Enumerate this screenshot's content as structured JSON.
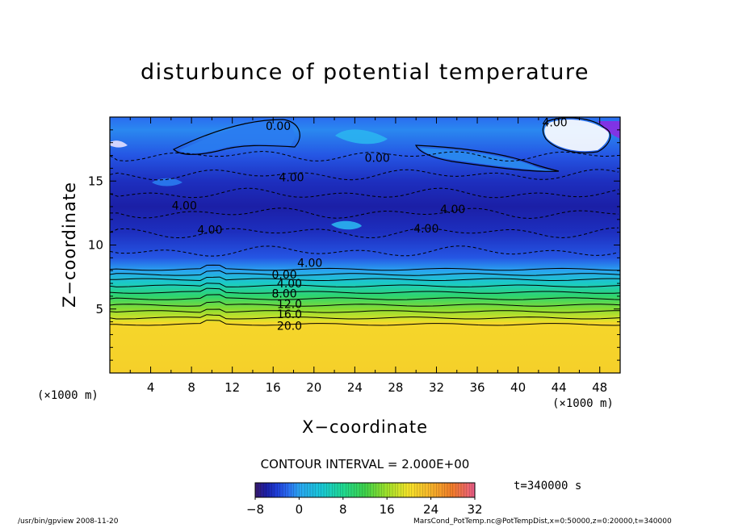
{
  "chart_data": {
    "type": "heatmap",
    "title": "disturbunce of potential temperature",
    "xlabel": "X−coordinate",
    "ylabel": "Z−coordinate",
    "x_unit": "(×1000 m)",
    "y_unit": "(×1000 m)",
    "xlim": [
      0,
      50
    ],
    "ylim": [
      0,
      20
    ],
    "x_ticks": [
      4,
      8,
      12,
      16,
      20,
      24,
      28,
      32,
      36,
      40,
      44,
      48
    ],
    "y_ticks": [
      5,
      10,
      15
    ],
    "contour_interval": "CONTOUR INTERVAL = 2.000E+00",
    "contour_labels": [
      {
        "text": "0.00",
        "x": 16.5,
        "z": 19.3
      },
      {
        "text": "0.00",
        "x": 26.2,
        "z": 16.8
      },
      {
        "text": "4.00",
        "x": 43.6,
        "z": 19.6
      },
      {
        "text": "4.00",
        "x": 17.8,
        "z": 15.3
      },
      {
        "text": "4.00",
        "x": 7.3,
        "z": 13.1
      },
      {
        "text": "4.00",
        "x": 33.6,
        "z": 12.8
      },
      {
        "text": "4.00",
        "x": 9.8,
        "z": 11.2
      },
      {
        "text": "4.00",
        "x": 31.0,
        "z": 11.3
      },
      {
        "text": "4.00",
        "x": 19.6,
        "z": 8.6
      },
      {
        "text": "0.00",
        "x": 17.1,
        "z": 7.7
      },
      {
        "text": "4.00",
        "x": 17.6,
        "z": 7.0
      },
      {
        "text": "8.00",
        "x": 17.1,
        "z": 6.2
      },
      {
        "text": "12.0",
        "x": 17.6,
        "z": 5.4
      },
      {
        "text": "16.0",
        "x": 17.6,
        "z": 4.6
      },
      {
        "text": "20.0",
        "x": 17.6,
        "z": 3.7
      }
    ],
    "field_profile": [
      {
        "z": 0.0,
        "value": 21.5
      },
      {
        "z": 3.9,
        "value": 21.0
      },
      {
        "z": 4.1,
        "value": 19.0
      },
      {
        "z": 5.0,
        "value": 15.0
      },
      {
        "z": 6.0,
        "value": 10.0
      },
      {
        "z": 7.0,
        "value": 5.0
      },
      {
        "z": 8.0,
        "value": 0.0
      },
      {
        "z": 9.0,
        "value": -3.0
      },
      {
        "z": 11.0,
        "value": -5.0
      },
      {
        "z": 13.0,
        "value": -6.0
      },
      {
        "z": 15.0,
        "value": -5.0
      },
      {
        "z": 17.0,
        "value": -3.0
      },
      {
        "z": 19.0,
        "value": -1.0
      },
      {
        "z": 20.0,
        "value": -2.0
      }
    ],
    "colorbar": {
      "min": -8,
      "max": 32,
      "tick_labels": [
        "−8",
        "0",
        "8",
        "16",
        "24",
        "32"
      ],
      "tick_values": [
        -8,
        0,
        8,
        16,
        24,
        32
      ]
    },
    "grid": false
  },
  "time_label": "t=340000 s",
  "footer_left": "/usr/bin/gpview   2008-11-20",
  "footer_right": "MarsCond_PotTemp.nc@PotTempDist,x=0:50000,z=0:20000,t=340000",
  "colors": {
    "deep_blue": "#1a1fa0",
    "mid_blue": "#2a5ce0",
    "cyan": "#19c2d8",
    "green": "#3ed04a",
    "yellow": "#f5e22a",
    "orange": "#f5b22a",
    "purple": "#8a2be2"
  }
}
